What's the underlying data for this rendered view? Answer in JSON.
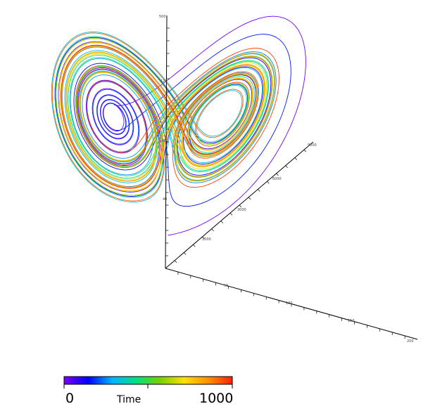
{
  "chart_data": {
    "type": "line",
    "title": "",
    "description_text": "",
    "z_axis_ticks": [
      "500",
      "120",
      "80",
      "40"
    ],
    "y_axis_ticks": [
      "9000",
      "6000",
      "3000",
      "1000"
    ],
    "x_axis_ticks": [
      "50",
      "100",
      "150",
      "200"
    ],
    "colorbar": {
      "label": "Time",
      "min_label": "0",
      "max_label": "1000",
      "min": 0,
      "max": 1000,
      "colormap": [
        "#7a00ff",
        "#0000ff",
        "#00b4ff",
        "#00e080",
        "#7ad000",
        "#ffe000",
        "#ff9000",
        "#ff2000"
      ]
    },
    "attractor": {
      "kind": "lorenz",
      "sigma": 10,
      "rho": 28,
      "beta": 2.6667,
      "dt": 0.005,
      "steps": 14000,
      "start": [
        0.1,
        0.0,
        0.0
      ]
    },
    "grid": false,
    "legend": "colorbar-bottom-left"
  }
}
